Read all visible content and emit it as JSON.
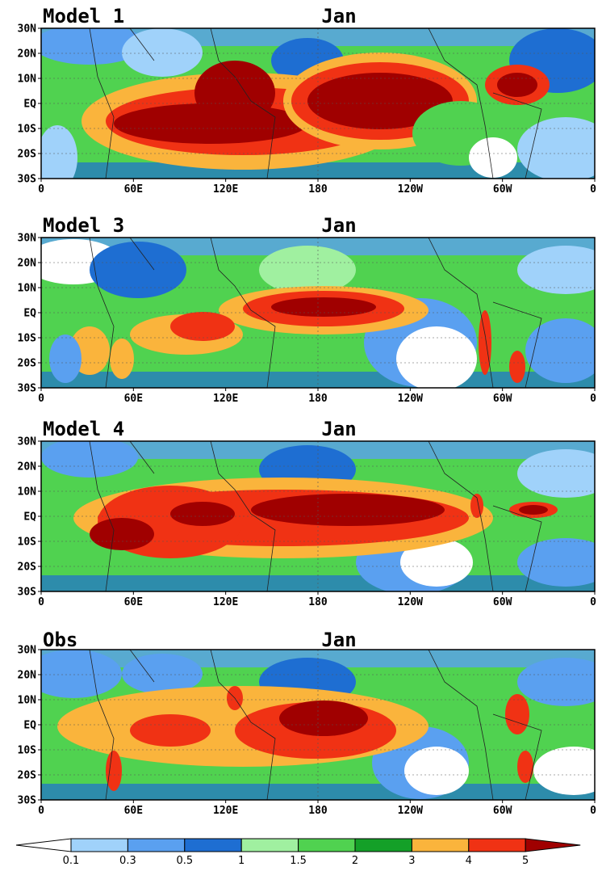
{
  "panels": [
    {
      "title": "Model 1",
      "month": "Jan"
    },
    {
      "title": "Model 3",
      "month": "Jan"
    },
    {
      "title": "Model 4",
      "month": "Jan"
    },
    {
      "title": "Obs",
      "month": "Jan"
    }
  ],
  "lat_ticks": [
    "30N",
    "20N",
    "10N",
    "EQ",
    "10S",
    "20S",
    "30S"
  ],
  "lon_ticks": [
    "0",
    "60E",
    "120E",
    "180",
    "120W",
    "60W",
    "0"
  ],
  "colorbar": {
    "levels": [
      "0.1",
      "0.3",
      "0.5",
      "1",
      "1.5",
      "2",
      "3",
      "4",
      "5"
    ],
    "colors": [
      "#ffffff",
      "#a0d2fa",
      "#5aa0f0",
      "#1e6ed2",
      "#a0f0a0",
      "#50d250",
      "#14a028",
      "#fab43c",
      "#f03214",
      "#a00000"
    ]
  },
  "map_colors": {
    "background": "#50d250",
    "land_outline": "#222222",
    "grid": "#555555"
  }
}
